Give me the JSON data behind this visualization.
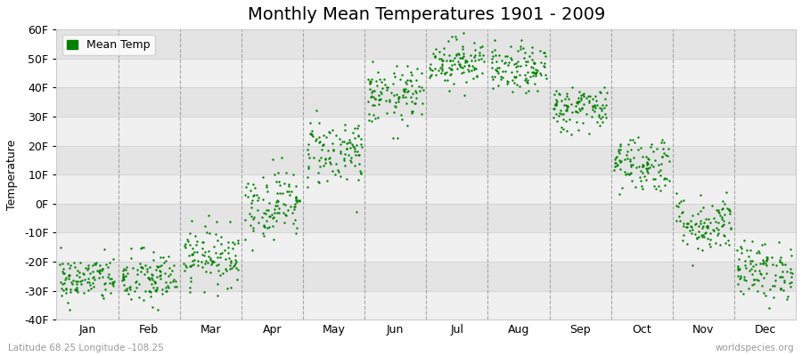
{
  "title": "Monthly Mean Temperatures 1901 - 2009",
  "ylabel": "Temperature",
  "xlabel_labels": [
    "Jan",
    "Feb",
    "Mar",
    "Apr",
    "May",
    "Jun",
    "Jul",
    "Aug",
    "Sep",
    "Oct",
    "Nov",
    "Dec"
  ],
  "ylim": [
    -40,
    60
  ],
  "yticks": [
    -40,
    -30,
    -20,
    -10,
    0,
    10,
    20,
    30,
    40,
    50,
    60
  ],
  "ytick_labels": [
    "-40F",
    "-30F",
    "-20F",
    "-10F",
    "0F",
    "10F",
    "20F",
    "30F",
    "40F",
    "50F",
    "60F"
  ],
  "dot_color": "#008000",
  "dot_size": 3,
  "background_color": "#ffffff",
  "plot_bg_color": "#ffffff",
  "band_color_light": "#f0f0f0",
  "band_color_dark": "#e4e4e4",
  "grid_line_color": "#888888",
  "title_fontsize": 14,
  "axis_fontsize": 9,
  "tick_fontsize": 9,
  "legend_label": "Mean Temp",
  "subtitle_left": "Latitude 68.25 Longitude -108.25",
  "subtitle_right": "worldspecies.org",
  "monthly_means": [
    -26,
    -26,
    -18,
    0,
    18,
    37,
    49,
    46,
    33,
    14,
    -7,
    -23
  ],
  "monthly_stds": [
    4,
    5,
    5,
    6,
    6,
    5,
    4,
    4,
    4,
    5,
    5,
    5
  ],
  "n_years": 109
}
